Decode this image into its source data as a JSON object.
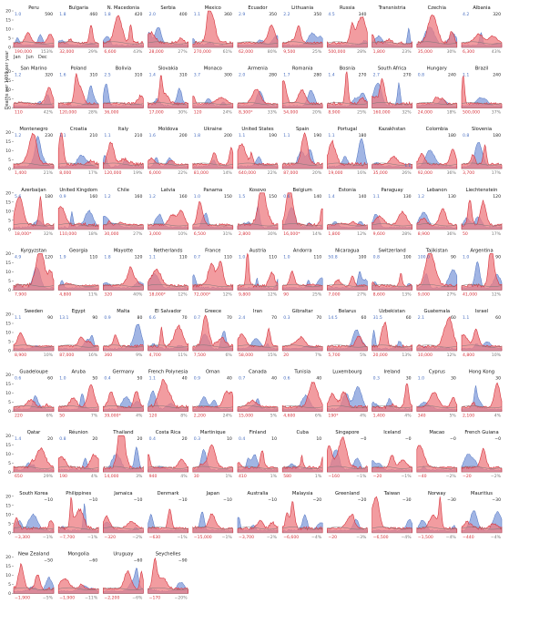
{
  "figure": {
    "ylabel": "Deaths per 1000 per year",
    "xticks": [
      "Jan",
      "Jun",
      "Dec"
    ]
  },
  "chart_data": {
    "type": "area",
    "ylabel": "Deaths per 1000 per year",
    "ylim": [
      0,
      20
    ],
    "yticks": [
      0,
      5,
      10,
      15,
      20
    ],
    "panels": [
      {
        "name": "Peru",
        "b": "1.0",
        "tr": "590",
        "m": "190,000",
        "p": "153%",
        "br": "",
        "bl": "",
        "sh": 0
      },
      {
        "name": "Bulgaria",
        "b": "1.8",
        "tr": "460",
        "m": "32,000",
        "p": "29%",
        "br": "",
        "bl": "",
        "sh": 1
      },
      {
        "name": "N. Macedonia",
        "b": "1.8",
        "tr": "420",
        "m": "6,600",
        "p": "43%",
        "br": "",
        "bl": "",
        "sh": 2
      },
      {
        "name": "Serbia",
        "b": "2.0",
        "tr": "400",
        "m": "28,000",
        "p": "27%",
        "br": "",
        "bl": "",
        "sh": 3
      },
      {
        "name": "Mexico",
        "b": "1.1",
        "tr": "360",
        "m": "270,000",
        "p": "61%",
        "br": "",
        "bl": "",
        "sh": 4
      },
      {
        "name": "Ecuador",
        "b": "2.9",
        "tr": "350",
        "m": "62,000",
        "p": "80%",
        "br": "",
        "bl": "",
        "sh": 5
      },
      {
        "name": "Lithuania",
        "b": "2.2",
        "tr": "350",
        "m": "9,500",
        "p": "25%",
        "br": "",
        "bl": "",
        "sh": 6
      },
      {
        "name": "Russia",
        "b": "4.5",
        "tr": "340",
        "m": "500,000",
        "p": "28%",
        "br": "",
        "bl": "",
        "sh": 7
      },
      {
        "name": "Transnistria",
        "b": "",
        "tr": "",
        "m": "1,800",
        "p": "23%",
        "br": "",
        "bl": "",
        "sh": 8
      },
      {
        "name": "Czechia",
        "b": "",
        "tr": "",
        "m": "35,000",
        "p": "30%",
        "br": "",
        "bl": "",
        "sh": 9
      },
      {
        "name": "Albania",
        "b": "4.2",
        "tr": "320",
        "m": "6,300",
        "p": "43%",
        "br": "",
        "bl": "",
        "sh": 10
      },
      {
        "name": "San Marino",
        "b": "1.2",
        "tr": "320",
        "m": "110",
        "p": "42%",
        "br": "",
        "bl": "",
        "sh": 11
      },
      {
        "name": "Poland",
        "b": "1.6",
        "tr": "310",
        "m": "120,000",
        "p": "28%",
        "br": "",
        "bl": "",
        "sh": 12
      },
      {
        "name": "Bolivia",
        "b": "2.5",
        "tr": "310",
        "m": "36,000",
        "p": "",
        "br": "",
        "bl": "",
        "sh": 13
      },
      {
        "name": "Slovakia",
        "b": "1.4",
        "tr": "310",
        "m": "17,000",
        "p": "30%",
        "br": "",
        "bl": "",
        "sh": 14
      },
      {
        "name": "Monaco",
        "b": "3.7",
        "tr": "300",
        "m": "120",
        "p": "24%",
        "br": "",
        "bl": "",
        "sh": 15
      },
      {
        "name": "Armenia",
        "b": "2.0",
        "tr": "280",
        "m": "8,300*",
        "p": "33%",
        "br": "",
        "bl": "",
        "sh": 16
      },
      {
        "name": "Romania",
        "b": "1.7",
        "tr": "280",
        "m": "54,000",
        "p": "20%",
        "br": "",
        "bl": "",
        "sh": 17
      },
      {
        "name": "Bosnia",
        "b": "1.4",
        "tr": "270",
        "m": "8,900",
        "p": "25%",
        "br": "",
        "bl": "",
        "sh": 18
      },
      {
        "name": "South Africa",
        "b": "2.7",
        "tr": "270",
        "m": "160,000",
        "p": "32%",
        "br": "",
        "bl": "",
        "sh": 19
      },
      {
        "name": "Hungary",
        "b": "0.8",
        "tr": "240",
        "m": "24,000",
        "p": "18%",
        "br": "",
        "bl": "",
        "sh": 20
      },
      {
        "name": "Brazil",
        "b": "1.1",
        "tr": "240",
        "m": "500,000",
        "p": "37%",
        "br": "",
        "bl": "",
        "sh": 21
      },
      {
        "name": "Montenegro",
        "b": "1.2",
        "tr": "230",
        "m": "1,400",
        "p": "21%",
        "br": "",
        "bl": "",
        "sh": 22
      },
      {
        "name": "Croatia",
        "b": "1.1",
        "tr": "210",
        "m": "8,000",
        "p": "17%",
        "br": "",
        "bl": "",
        "sh": 23
      },
      {
        "name": "Italy",
        "b": "1.1",
        "tr": "210",
        "m": "120,000",
        "p": "19%",
        "br": "",
        "bl": "",
        "sh": 24
      },
      {
        "name": "Moldova",
        "b": "1.6",
        "tr": "200",
        "m": "6,000",
        "p": "22%",
        "br": "",
        "bl": "",
        "sh": 25
      },
      {
        "name": "Ukraine",
        "b": "1.8",
        "tr": "200",
        "m": "81,000",
        "p": "14%",
        "br": "",
        "bl": "",
        "sh": 26
      },
      {
        "name": "United States",
        "b": "1.1",
        "tr": "190",
        "m": "640,000",
        "p": "22%",
        "br": "",
        "bl": "",
        "sh": 27
      },
      {
        "name": "Spain",
        "b": "1.1",
        "tr": "190",
        "m": "87,000",
        "p": "20%",
        "br": "",
        "bl": "",
        "sh": 28
      },
      {
        "name": "Portugal",
        "b": "1.1",
        "tr": "180",
        "m": "19,000",
        "p": "16%",
        "br": "",
        "bl": "",
        "sh": 29
      },
      {
        "name": "Kazakhstan",
        "b": "",
        "tr": "",
        "m": "35,000",
        "p": "26%",
        "br": "1.6",
        "bl": "",
        "sh": 30
      },
      {
        "name": "Colombia",
        "b": "",
        "tr": "180",
        "m": "92,000",
        "p": "36%",
        "br": "",
        "bl": "",
        "sh": 31
      },
      {
        "name": "Slovenia",
        "b": "0.8",
        "tr": "180",
        "m": "3,700",
        "p": "17%",
        "br": "",
        "bl": "",
        "sh": 32
      },
      {
        "name": "Azerbaijan",
        "b": "5.6",
        "tr": "180",
        "m": "18,000*",
        "p": "32%",
        "br": "",
        "bl": "",
        "sh": 33
      },
      {
        "name": "United Kingdom",
        "b": "0.9",
        "tr": "160",
        "m": "110,000",
        "p": "18%",
        "br": "",
        "bl": "",
        "sh": 34
      },
      {
        "name": "Chile",
        "b": "1.2",
        "tr": "160",
        "m": "30,000",
        "p": "27%",
        "br": "",
        "bl": "",
        "sh": 35
      },
      {
        "name": "Latvia",
        "b": "1.2",
        "tr": "160",
        "m": "3,000",
        "p": "10%",
        "br": "",
        "bl": "",
        "sh": 36
      },
      {
        "name": "Panama",
        "b": "1.0",
        "tr": "150",
        "m": "6,500",
        "p": "31%",
        "br": "",
        "bl": "",
        "sh": 37
      },
      {
        "name": "Kosovo",
        "b": "1.5",
        "tr": "150",
        "m": "2,800",
        "p": "30%",
        "br": "",
        "bl": "",
        "sh": 38
      },
      {
        "name": "Belgium",
        "b": "0.6",
        "tr": "140",
        "m": "16,000*",
        "p": "14%",
        "br": "",
        "bl": "",
        "sh": 39
      },
      {
        "name": "Estonia",
        "b": "1.4",
        "tr": "140",
        "m": "1,800",
        "p": "12%",
        "br": "",
        "bl": "",
        "sh": 40
      },
      {
        "name": "Paraguay",
        "b": "1.1",
        "tr": "130",
        "m": "9,600",
        "p": "28%",
        "br": "",
        "bl": "",
        "sh": 41
      },
      {
        "name": "Lebanon",
        "b": "1.2",
        "tr": "130",
        "m": "8,900",
        "p": "36%",
        "br": "",
        "bl": "",
        "sh": 42
      },
      {
        "name": "Liechtenstein",
        "b": "",
        "tr": "120",
        "m": "50",
        "p": "17%",
        "br": "",
        "bl": "",
        "sh": 43
      },
      {
        "name": "Kyrgyzstan",
        "b": "4.9",
        "tr": "120",
        "m": "7,900",
        "p": "",
        "br": "",
        "bl": "",
        "sh": 44
      },
      {
        "name": "Georgia",
        "b": "1.9",
        "tr": "110",
        "m": "4,800",
        "p": "11%",
        "br": "",
        "bl": "",
        "sh": 45
      },
      {
        "name": "Mayotte",
        "b": "1.8",
        "tr": "120",
        "m": "320",
        "p": "40%",
        "br": "",
        "bl": "",
        "sh": 46
      },
      {
        "name": "Netherlands",
        "b": "1.1",
        "tr": "110",
        "m": "18,000*",
        "p": "12%",
        "br": "",
        "bl": "",
        "sh": 47
      },
      {
        "name": "France",
        "b": "0.7",
        "tr": "110",
        "m": "72,000*",
        "p": "12%",
        "br": "",
        "bl": "",
        "sh": 48
      },
      {
        "name": "Austria",
        "b": "1.0",
        "tr": "110",
        "m": "9,800",
        "p": "12%",
        "br": "",
        "bl": "",
        "sh": 49
      },
      {
        "name": "Andorra",
        "b": "1.0",
        "tr": "110",
        "m": "90",
        "p": "25%",
        "br": "",
        "bl": "",
        "sh": 50
      },
      {
        "name": "Nicaragua",
        "b": "50.8",
        "tr": "100",
        "m": "7,000",
        "p": "27%",
        "br": "",
        "bl": "",
        "sh": 51
      },
      {
        "name": "Switzerland",
        "b": "0.8",
        "tr": "100",
        "m": "8,600",
        "p": "13%",
        "br": "",
        "bl": "",
        "sh": 52
      },
      {
        "name": "Tajikistan",
        "b": "100.0",
        "tr": "90",
        "m": "9,000",
        "p": "27%",
        "br": "",
        "bl": "",
        "sh": 53
      },
      {
        "name": "Argentina",
        "b": "1.0",
        "tr": "90",
        "m": "41,000",
        "p": "12%",
        "br": "",
        "bl": "",
        "sh": 54
      },
      {
        "name": "Sweden",
        "b": "1.1",
        "tr": "90",
        "m": "8,900",
        "p": "10%",
        "br": "",
        "bl": "",
        "sh": 55
      },
      {
        "name": "Egypt",
        "b": "13.1",
        "tr": "90",
        "m": "87,000",
        "p": "16%",
        "br": "",
        "bl": "",
        "sh": 56
      },
      {
        "name": "Malta",
        "b": "0.9",
        "tr": "80",
        "m": "360",
        "p": "9%",
        "br": "",
        "bl": "",
        "sh": 57
      },
      {
        "name": "El Salvador",
        "b": "6.6",
        "tr": "70",
        "m": "4,700",
        "p": "11%",
        "br": "",
        "bl": "",
        "sh": 58
      },
      {
        "name": "Greece",
        "b": "0.7",
        "tr": "70",
        "m": "7,500",
        "p": "6%",
        "br": "",
        "bl": "",
        "sh": 59
      },
      {
        "name": "Iran",
        "b": "2.4",
        "tr": "70",
        "m": "58,000",
        "p": "15%",
        "br": "",
        "bl": "",
        "sh": 60
      },
      {
        "name": "Gibraltar",
        "b": "0.3",
        "tr": "70",
        "m": "20",
        "p": "7%",
        "br": "",
        "bl": "",
        "sh": 61
      },
      {
        "name": "Belarus",
        "b": "14.5",
        "tr": "60",
        "m": "5,700",
        "p": "5%",
        "br": "",
        "bl": "",
        "sh": 62
      },
      {
        "name": "Uzbekistan",
        "b": "31.5",
        "tr": "60",
        "m": "20,000",
        "p": "13%",
        "br": "",
        "bl": "",
        "sh": 63
      },
      {
        "name": "Guatemala",
        "b": "2.1",
        "tr": "60",
        "m": "10,000",
        "p": "12%",
        "br": "",
        "bl": "",
        "sh": 64
      },
      {
        "name": "Israel",
        "b": "1.1",
        "tr": "60",
        "m": "4,800",
        "p": "10%",
        "br": "",
        "bl": "",
        "sh": 65
      },
      {
        "name": "Guadeloupe",
        "b": "0.6",
        "tr": "60",
        "m": "220",
        "p": "6%",
        "br": "",
        "bl": "",
        "sh": 66
      },
      {
        "name": "Aruba",
        "b": "1.0",
        "tr": "50",
        "m": "50",
        "p": "7%",
        "br": "",
        "bl": "",
        "sh": 67
      },
      {
        "name": "Germany",
        "b": "0.4",
        "tr": "50",
        "m": "39,000*",
        "p": "4%",
        "br": "",
        "bl": "",
        "sh": 68
      },
      {
        "name": "French Polynesia",
        "b": "1.1",
        "tr": "40",
        "m": "120",
        "p": "8%",
        "br": "",
        "bl": "",
        "sh": 69
      },
      {
        "name": "Oman",
        "b": "0.9",
        "tr": "40",
        "m": "2,200",
        "p": "24%",
        "br": "",
        "bl": "",
        "sh": 70
      },
      {
        "name": "Canada",
        "b": "0.7",
        "tr": "40",
        "m": "15,000",
        "p": "5%",
        "br": "",
        "bl": "",
        "sh": 71
      },
      {
        "name": "Tunisia",
        "b": "0.6",
        "tr": "40",
        "m": "4,600",
        "p": "6%",
        "br": "",
        "bl": "",
        "sh": 72
      },
      {
        "name": "Luxembourg",
        "b": "",
        "tr": "",
        "m": "190*",
        "p": "4%",
        "br": "",
        "bl": "",
        "sh": 73
      },
      {
        "name": "Ireland",
        "b": "0.3",
        "tr": "30",
        "m": "1,400",
        "p": "4%",
        "br": "",
        "bl": "",
        "sh": 74
      },
      {
        "name": "Cyprus",
        "b": "1.0",
        "tr": "30",
        "m": "340",
        "p": "5%",
        "br": "",
        "bl": "",
        "sh": 75
      },
      {
        "name": "Hong Kong",
        "b": "",
        "tr": "30",
        "m": "2,100",
        "p": "4%",
        "br": "",
        "bl": "",
        "sh": 76
      },
      {
        "name": "Qatar",
        "b": "1.4",
        "tr": "20",
        "m": "650",
        "p": "29%",
        "br": "",
        "bl": "",
        "sh": 77
      },
      {
        "name": "Réunion",
        "b": "0.8",
        "tr": "20",
        "m": "190",
        "p": "4%",
        "br": "",
        "bl": "",
        "sh": 78
      },
      {
        "name": "Thailand",
        "b": "",
        "tr": "20",
        "m": "14,000",
        "p": "3%",
        "br": "",
        "bl": "",
        "sh": 79
      },
      {
        "name": "Costa Rica",
        "b": "0.4",
        "tr": "20",
        "m": "940",
        "p": "4%",
        "br": "",
        "bl": "",
        "sh": 80
      },
      {
        "name": "Martinique",
        "b": "0.3",
        "tr": "10",
        "m": "30",
        "p": "1%",
        "br": "",
        "bl": "",
        "sh": 81
      },
      {
        "name": "Finland",
        "b": "0.4",
        "tr": "10",
        "m": "410",
        "p": "1%",
        "br": "",
        "bl": "",
        "sh": 82
      },
      {
        "name": "Cuba",
        "b": "",
        "tr": "10",
        "m": "580",
        "p": "1%",
        "br": "",
        "bl": "",
        "sh": 83
      },
      {
        "name": "Singapore",
        "b": "",
        "tr": "−0",
        "m": "−160",
        "p": "−1%",
        "br": "",
        "bl": "",
        "sh": 84
      },
      {
        "name": "Iceland",
        "b": "",
        "tr": "−0",
        "m": "−20",
        "p": "−1%",
        "br": "",
        "bl": "",
        "sh": 85
      },
      {
        "name": "Macao",
        "b": "",
        "tr": "−0",
        "m": "−40",
        "p": "−2%",
        "br": "",
        "bl": "",
        "sh": 86
      },
      {
        "name": "French Guiana",
        "b": "",
        "tr": "−0",
        "m": "−20",
        "p": "−2%",
        "br": "",
        "bl": "",
        "sh": 87
      },
      {
        "name": "South Korea",
        "b": "",
        "tr": "−10",
        "m": "−3,300",
        "p": "−1%",
        "br": "",
        "bl": "",
        "sh": 88
      },
      {
        "name": "Philippines",
        "b": "",
        "tr": "−10",
        "m": "−7,700",
        "p": "−1%",
        "br": "",
        "bl": "",
        "sh": 89
      },
      {
        "name": "Jamaica",
        "b": "",
        "tr": "−10",
        "m": "−320",
        "p": "−2%",
        "br": "",
        "bl": "",
        "sh": 90
      },
      {
        "name": "Denmark",
        "b": "",
        "tr": "−10",
        "m": "−630",
        "p": "−1%",
        "br": "",
        "bl": "",
        "sh": 91
      },
      {
        "name": "Japan",
        "b": "",
        "tr": "−10",
        "m": "−15,000",
        "p": "−1%",
        "br": "",
        "bl": "",
        "sh": 92
      },
      {
        "name": "Australia",
        "b": "",
        "tr": "−10",
        "m": "−3,700",
        "p": "−2%",
        "br": "",
        "bl": "",
        "sh": 93
      },
      {
        "name": "Malaysia",
        "b": "",
        "tr": "−20",
        "m": "−6,600",
        "p": "−4%",
        "br": "",
        "bl": "",
        "sh": 94
      },
      {
        "name": "Greenland",
        "b": "",
        "tr": "−20",
        "m": "−20",
        "p": "−3%",
        "br": "",
        "bl": "",
        "sh": 95
      },
      {
        "name": "Taiwan",
        "b": "",
        "tr": "−30",
        "m": "−6,500",
        "p": "−4%",
        "br": "",
        "bl": "",
        "sh": 96
      },
      {
        "name": "Norway",
        "b": "",
        "tr": "−30",
        "m": "−1,500",
        "p": "−4%",
        "br": "",
        "bl": "",
        "sh": 97
      },
      {
        "name": "Mauritius",
        "b": "",
        "tr": "−30",
        "m": "−440",
        "p": "−4%",
        "br": "",
        "bl": "",
        "sh": 98
      },
      {
        "name": "New Zealand",
        "b": "",
        "tr": "−50",
        "m": "−1,900",
        "p": "−5%",
        "br": "",
        "bl": "",
        "sh": 99
      },
      {
        "name": "Mongolia",
        "b": "",
        "tr": "−60",
        "m": "−1,900",
        "p": "−11%",
        "br": "",
        "bl": "",
        "sh": 100
      },
      {
        "name": "Uruguay",
        "b": "",
        "tr": "−60",
        "m": "−2,200",
        "p": "−6%",
        "br": "",
        "bl": "",
        "sh": 101
      },
      {
        "name": "Seychelles",
        "b": "",
        "tr": "−90",
        "m": "−170",
        "p": "−20%",
        "br": "",
        "bl": "",
        "sh": 102
      }
    ]
  },
  "colors": {
    "blue": "#4a6fc0",
    "blue_fill": "#8aa2dd",
    "red": "#d6333c",
    "red_fill": "#ee7b80",
    "gray": "#777777",
    "panel_title": "#111111"
  }
}
